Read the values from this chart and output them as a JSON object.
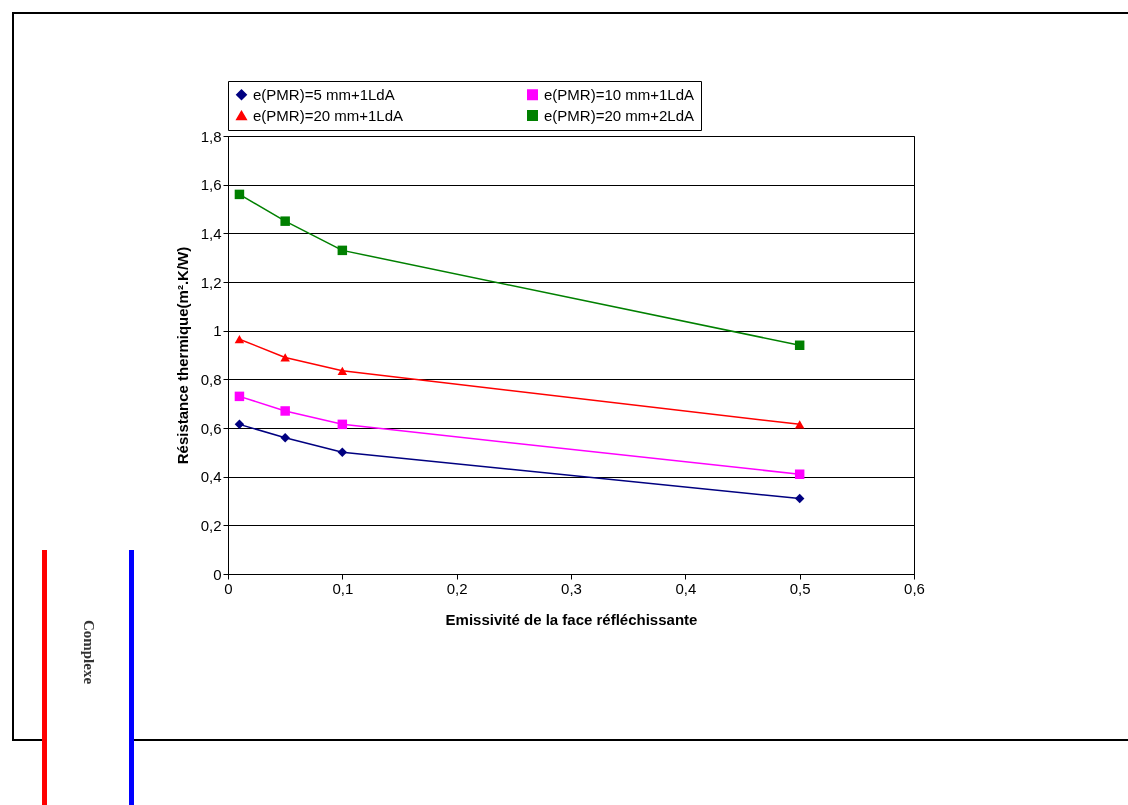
{
  "chart_data": {
    "type": "line",
    "xlabel": "Emissivité de la face réfléchissante",
    "ylabel": "Résistance thermique(m².K/W)",
    "x": [
      0.01,
      0.05,
      0.1,
      0.5
    ],
    "series": [
      {
        "name": "e(PMR)=5 mm+1LdA",
        "color": "#000080",
        "marker": "diamond",
        "values": [
          0.615,
          0.56,
          0.5,
          0.31
        ]
      },
      {
        "name": "e(PMR)=10 mm+1LdA",
        "color": "#ff00ff",
        "marker": "square",
        "values": [
          0.73,
          0.67,
          0.615,
          0.41
        ]
      },
      {
        "name": "e(PMR)=20 mm+1LdA",
        "color": "#ff0000",
        "marker": "triangle",
        "values": [
          0.965,
          0.89,
          0.835,
          0.615
        ]
      },
      {
        "name": "e(PMR)=20 mm+2LdA",
        "color": "#008000",
        "marker": "square",
        "values": [
          1.56,
          1.45,
          1.33,
          0.94
        ]
      }
    ],
    "xlim": [
      0,
      0.6
    ],
    "xticks": [
      0,
      {
        "value": 0.1,
        "label": "0,1"
      },
      {
        "value": 0.2,
        "label": "0,2"
      },
      {
        "value": 0.3,
        "label": "0,3"
      },
      {
        "value": 0.4,
        "label": "0,4"
      },
      {
        "value": 0.5,
        "label": "0,5"
      },
      {
        "value": 0.6,
        "label": "0,6"
      }
    ],
    "ylim": [
      0,
      1.8
    ],
    "yticks": [
      0,
      {
        "value": 0.2,
        "label": "0,2"
      },
      {
        "value": 0.4,
        "label": "0,4"
      },
      {
        "value": 0.6,
        "label": "0,6"
      },
      {
        "value": 0.8,
        "label": "0,8"
      },
      1,
      {
        "value": 1.2,
        "label": "1,2"
      },
      {
        "value": 1.4,
        "label": "1,4"
      },
      {
        "value": 1.6,
        "label": "1,6"
      },
      {
        "value": 1.8,
        "label": "1,8"
      }
    ],
    "grid": "y",
    "legend": "top",
    "line_style": "solid",
    "annotations": [
      "Complexe"
    ]
  }
}
